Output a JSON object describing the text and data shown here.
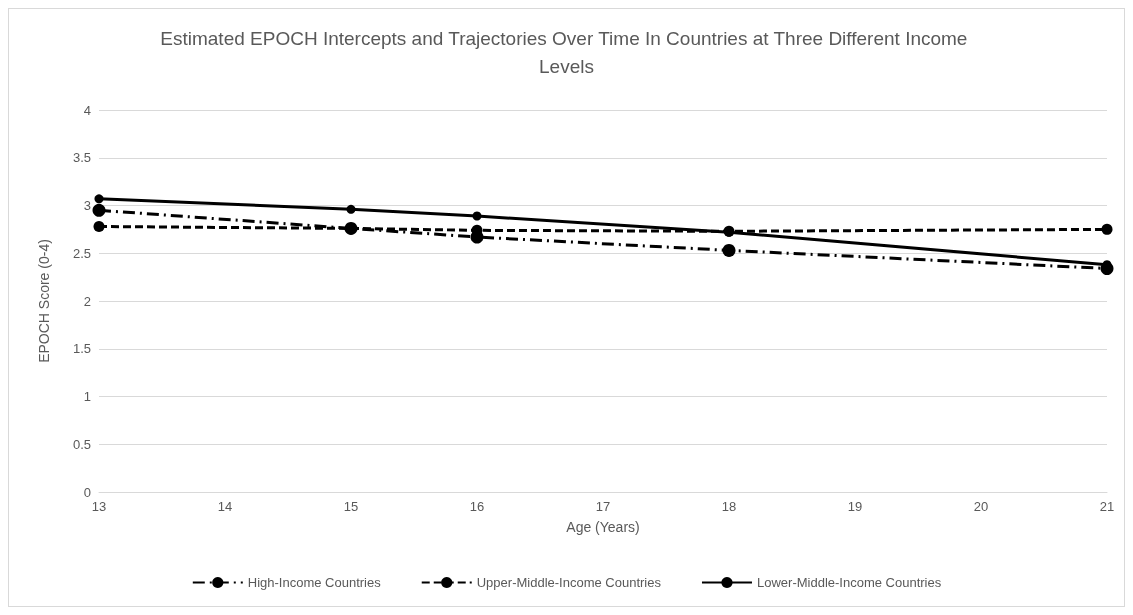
{
  "chart_data": {
    "type": "line",
    "title": "Estimated EPOCH Intercepts and Trajectories Over Time In Countries at Three Different Income Levels",
    "xlabel": "Age (Years)",
    "ylabel": "EPOCH Score (0-4)",
    "x": [
      13,
      15,
      16,
      18,
      21
    ],
    "series": [
      {
        "name": "High-Income Countries",
        "color": "#000000",
        "line_style": "dashdot",
        "values": [
          2.95,
          2.76,
          2.67,
          2.53,
          2.34
        ]
      },
      {
        "name": "Upper-Middle-Income Countries",
        "color": "#000000",
        "line_style": "dashed",
        "values": [
          2.78,
          2.76,
          2.74,
          2.73,
          2.75
        ]
      },
      {
        "name": "Lower-Middle-Income Countries",
        "color": "#000000",
        "line_style": "solid",
        "values": [
          3.07,
          2.96,
          2.89,
          2.72,
          2.38
        ]
      }
    ],
    "xlim": [
      13,
      21
    ],
    "xticks": [
      13,
      14,
      15,
      16,
      17,
      18,
      19,
      20,
      21
    ],
    "ylim": [
      0,
      4
    ],
    "yticks": [
      0,
      0.5,
      1,
      1.5,
      2,
      2.5,
      3,
      3.5,
      4
    ],
    "grid": "y",
    "legend": "bottom",
    "marker": "circle"
  }
}
